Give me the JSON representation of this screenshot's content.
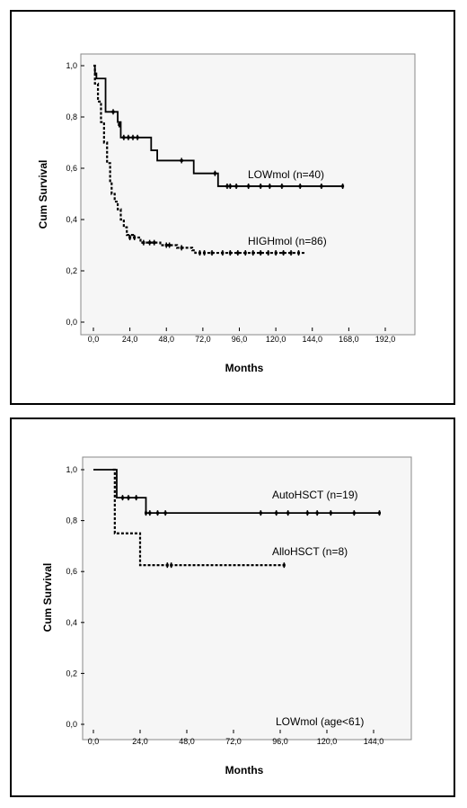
{
  "chart_data": [
    {
      "type": "line",
      "xlabel": "Months",
      "ylabel": "Cum Survival",
      "xticks": [
        "0,0",
        "24,0",
        "48,0",
        "72,0",
        "96,0",
        "120,0",
        "144,0",
        "168,0",
        "192,0"
      ],
      "yticks": [
        "0,0",
        "0,2",
        "0,4",
        "0,6",
        "0,8",
        "1,0"
      ],
      "xlim": [
        0,
        192
      ],
      "ylim": [
        0,
        1
      ],
      "grid": false,
      "annotation": "",
      "series": [
        {
          "name": "LOWmol (n=40)",
          "style": "solid",
          "color": "#000000",
          "steps": [
            [
              0,
              1.0
            ],
            [
              1,
              0.97
            ],
            [
              2,
              0.95
            ],
            [
              8,
              0.82
            ],
            [
              16,
              0.78
            ],
            [
              18,
              0.72
            ],
            [
              34,
              0.72
            ],
            [
              38,
              0.67
            ],
            [
              42,
              0.63
            ],
            [
              66,
              0.58
            ],
            [
              82,
              0.53
            ],
            [
              164,
              0.53
            ]
          ],
          "censored": [
            [
              13,
              0.82
            ],
            [
              17,
              0.77
            ],
            [
              20,
              0.72
            ],
            [
              23,
              0.72
            ],
            [
              26,
              0.72
            ],
            [
              29,
              0.72
            ],
            [
              58,
              0.63
            ],
            [
              80,
              0.58
            ],
            [
              88,
              0.53
            ],
            [
              90,
              0.53
            ],
            [
              94,
              0.53
            ],
            [
              102,
              0.53
            ],
            [
              110,
              0.53
            ],
            [
              116,
              0.53
            ],
            [
              124,
              0.53
            ],
            [
              136,
              0.53
            ],
            [
              150,
              0.53
            ],
            [
              164,
              0.53
            ]
          ]
        },
        {
          "name": "HIGHmol (n=86)",
          "style": "dashed",
          "color": "#000000",
          "steps": [
            [
              0,
              1.0
            ],
            [
              1,
              0.93
            ],
            [
              3,
              0.86
            ],
            [
              5,
              0.78
            ],
            [
              7,
              0.7
            ],
            [
              9,
              0.62
            ],
            [
              11,
              0.55
            ],
            [
              12,
              0.5
            ],
            [
              14,
              0.47
            ],
            [
              16,
              0.44
            ],
            [
              18,
              0.4
            ],
            [
              20,
              0.37
            ],
            [
              22,
              0.34
            ],
            [
              26,
              0.33
            ],
            [
              31,
              0.31
            ],
            [
              44,
              0.3
            ],
            [
              55,
              0.29
            ],
            [
              65,
              0.28
            ],
            [
              67,
              0.27
            ],
            [
              140,
              0.27
            ]
          ],
          "censored": [
            [
              24,
              0.33
            ],
            [
              27,
              0.33
            ],
            [
              33,
              0.31
            ],
            [
              37,
              0.31
            ],
            [
              40,
              0.31
            ],
            [
              48,
              0.3
            ],
            [
              50,
              0.3
            ],
            [
              58,
              0.29
            ],
            [
              70,
              0.27
            ],
            [
              73,
              0.27
            ],
            [
              78,
              0.27
            ],
            [
              85,
              0.27
            ],
            [
              90,
              0.27
            ],
            [
              95,
              0.27
            ],
            [
              100,
              0.27
            ],
            [
              105,
              0.27
            ],
            [
              110,
              0.27
            ],
            [
              115,
              0.27
            ],
            [
              120,
              0.27
            ],
            [
              125,
              0.27
            ],
            [
              130,
              0.27
            ],
            [
              135,
              0.27
            ]
          ]
        }
      ]
    },
    {
      "type": "line",
      "xlabel": "Months",
      "ylabel": "Cum Survival",
      "xticks": [
        "0,0",
        "24,0",
        "48,0",
        "72,0",
        "96,0",
        "120,0",
        "144,0"
      ],
      "yticks": [
        "0,0",
        "0,2",
        "0,4",
        "0,6",
        "0,8",
        "1,0"
      ],
      "xlim": [
        0,
        150
      ],
      "ylim": [
        0,
        1
      ],
      "grid": false,
      "annotation": "LOWmol (age<61)",
      "series": [
        {
          "name": "AutoHSCT (n=19)",
          "style": "solid",
          "color": "#000000",
          "steps": [
            [
              0,
              1.0
            ],
            [
              10,
              1.0
            ],
            [
              12,
              0.89
            ],
            [
              26,
              0.89
            ],
            [
              27,
              0.83
            ],
            [
              147,
              0.83
            ]
          ],
          "censored": [
            [
              15,
              0.89
            ],
            [
              18,
              0.89
            ],
            [
              22,
              0.89
            ],
            [
              27,
              0.83
            ],
            [
              29,
              0.83
            ],
            [
              33,
              0.83
            ],
            [
              37,
              0.83
            ],
            [
              86,
              0.83
            ],
            [
              94,
              0.83
            ],
            [
              100,
              0.83
            ],
            [
              110,
              0.83
            ],
            [
              115,
              0.83
            ],
            [
              122,
              0.83
            ],
            [
              134,
              0.83
            ],
            [
              147,
              0.83
            ]
          ]
        },
        {
          "name": "AlloHSCT (n=8)",
          "style": "dashed",
          "color": "#000000",
          "steps": [
            [
              10,
              1.0
            ],
            [
              11,
              0.75
            ],
            [
              22,
              0.75
            ],
            [
              24,
              0.625
            ],
            [
              98,
              0.625
            ]
          ],
          "censored": [
            [
              38,
              0.625
            ],
            [
              40,
              0.625
            ],
            [
              98,
              0.625
            ]
          ]
        }
      ]
    }
  ]
}
